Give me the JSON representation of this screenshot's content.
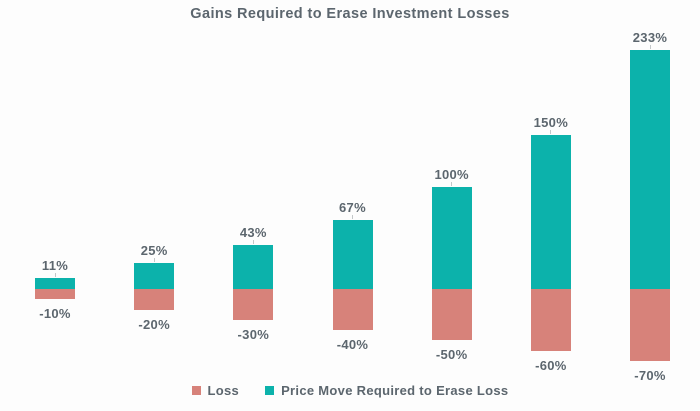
{
  "title": "Gains Required to Erase Investment Losses",
  "colors": {
    "gain": "#0cb2ab",
    "loss": "#d7827a",
    "text": "#5c666e",
    "tick": "#c3c7c9",
    "background": "#fdfdfd"
  },
  "legend": {
    "loss_label": "Loss",
    "gain_label": "Price Move Required to Erase Loss",
    "position": "bottom"
  },
  "chart_data": {
    "type": "bar",
    "subtype": "diverging-stacked",
    "title": "Gains Required to Erase Investment Losses",
    "categories": [
      "-10%",
      "-20%",
      "-30%",
      "-40%",
      "-50%",
      "-60%",
      "-70%"
    ],
    "series": [
      {
        "name": "Loss",
        "values": [
          -10,
          -20,
          -30,
          -40,
          -50,
          -60,
          -70
        ],
        "labels": [
          "-10%",
          "-20%",
          "-30%",
          "-40%",
          "-50%",
          "-60%",
          "-70%"
        ],
        "color": "#d7827a"
      },
      {
        "name": "Price Move Required to Erase Loss",
        "values": [
          11,
          25,
          43,
          67,
          100,
          150,
          233
        ],
        "labels": [
          "11%",
          "25%",
          "43%",
          "67%",
          "100%",
          "150%",
          "233%"
        ],
        "color": "#0cb2ab"
      }
    ],
    "axis_hidden": true,
    "gridlines": false,
    "data_labels": true,
    "legend_position": "bottom",
    "ylim": [
      -70,
      233
    ]
  }
}
